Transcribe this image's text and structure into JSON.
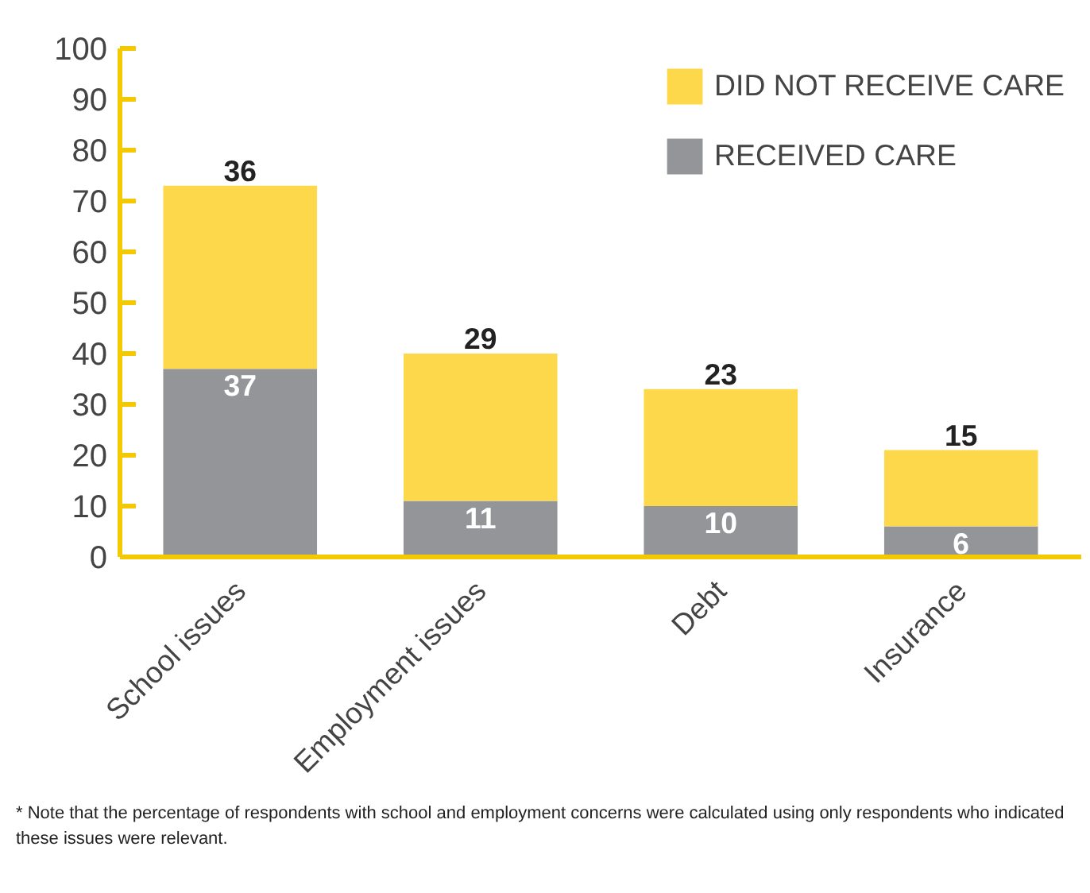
{
  "chart_data": {
    "type": "bar",
    "stacked": true,
    "categories": [
      "School issues",
      "Employment issues",
      "Debt",
      "Insurance"
    ],
    "series": [
      {
        "name": "RECEIVED CARE",
        "color": "#939598",
        "values": [
          37,
          11,
          10,
          6
        ]
      },
      {
        "name": "DID NOT RECEIVE CARE",
        "color": "#fcd84a",
        "values": [
          36,
          29,
          23,
          15
        ]
      }
    ],
    "ylim": [
      0,
      100
    ],
    "yticks": [
      0,
      10,
      20,
      30,
      40,
      50,
      60,
      70,
      80,
      90,
      100
    ],
    "grid": false,
    "legend": "top right",
    "data_labels": true,
    "annotations": [
      "* Note that the percentage of respondents with school and employment concerns were calculated using only respondents who indicated these issues were relevant."
    ]
  }
}
